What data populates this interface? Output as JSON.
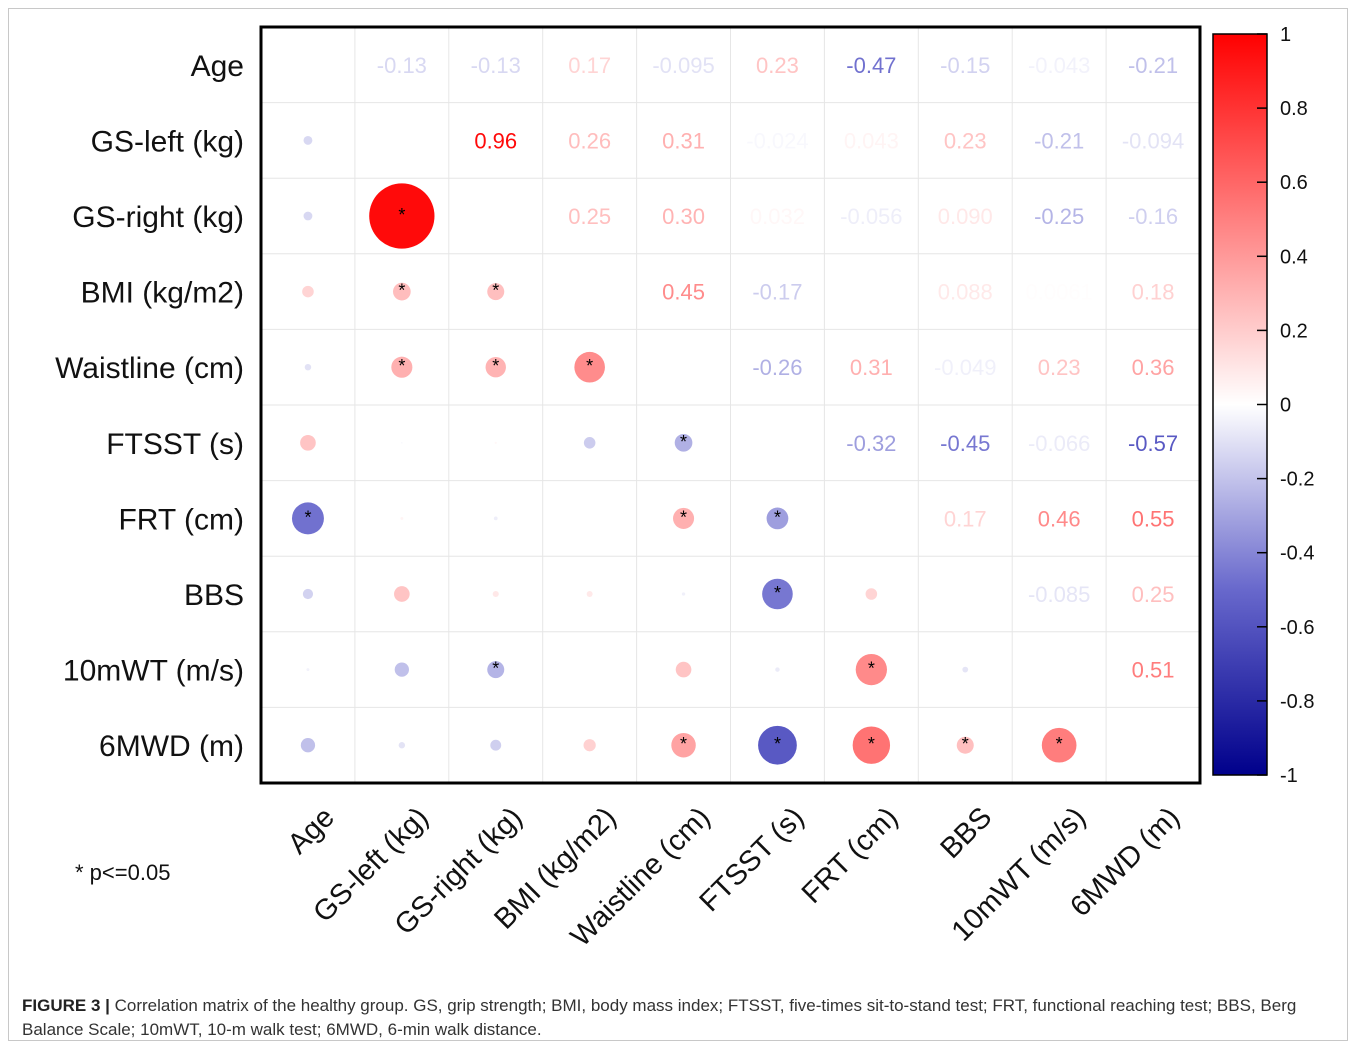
{
  "chart_data": {
    "type": "heatmap",
    "variables": [
      "Age",
      "GS-left (kg)",
      "GS-right (kg)",
      "BMI (kg/m2)",
      "Waistline (cm)",
      "FTSST (s)",
      "FRT (cm)",
      "BBS",
      "10mWT (m/s)",
      "6MWD (m)"
    ],
    "upper_labels": [
      [
        null,
        "-0.13",
        "-0.13",
        "0.17",
        "-0.095",
        "0.23",
        "-0.47",
        "-0.15",
        "-0.043",
        "-0.21"
      ],
      [
        null,
        null,
        "0.96",
        "0.26",
        "0.31",
        "-0.024",
        "0.043",
        "0.23",
        "-0.21",
        "-0.094"
      ],
      [
        null,
        null,
        null,
        "0.25",
        "0.30",
        "0.032",
        "-0.056",
        "0.090",
        "-0.25",
        "-0.16"
      ],
      [
        null,
        null,
        null,
        null,
        "0.45",
        "-0.17",
        "",
        "0.088",
        "0.0061",
        "0.18"
      ],
      [
        null,
        null,
        null,
        null,
        null,
        "-0.26",
        "0.31",
        "-0.049",
        "0.23",
        "0.36"
      ],
      [
        null,
        null,
        null,
        null,
        null,
        null,
        "-0.32",
        "-0.45",
        "-0.066",
        "-0.57"
      ],
      [
        null,
        null,
        null,
        null,
        null,
        null,
        null,
        "0.17",
        "0.46",
        "0.55"
      ],
      [
        null,
        null,
        null,
        null,
        null,
        null,
        null,
        null,
        "-0.085",
        "0.25"
      ],
      [
        null,
        null,
        null,
        null,
        null,
        null,
        null,
        null,
        null,
        "0.51"
      ],
      [
        null,
        null,
        null,
        null,
        null,
        null,
        null,
        null,
        null,
        null
      ]
    ],
    "significant": [
      [
        1,
        2
      ],
      [
        1,
        3
      ],
      [
        2,
        3
      ],
      [
        3,
        4
      ],
      [
        1,
        4
      ],
      [
        2,
        4
      ],
      [
        4,
        5
      ],
      [
        0,
        6
      ],
      [
        4,
        6
      ],
      [
        5,
        6
      ],
      [
        5,
        7
      ],
      [
        2,
        8
      ],
      [
        6,
        8
      ],
      [
        4,
        9
      ],
      [
        5,
        9
      ],
      [
        6,
        9
      ],
      [
        7,
        9
      ],
      [
        8,
        9
      ]
    ],
    "colorbar": {
      "min": -1,
      "max": 1,
      "ticks": [
        "1",
        "0.8",
        "0.6",
        "0.4",
        "0.2",
        "0",
        "-0.2",
        "-0.4",
        "-0.6",
        "-0.8",
        "-1"
      ],
      "colors": {
        "positive": "#ff0000",
        "zero": "#ffffff",
        "negative": "#00008b"
      }
    },
    "significance_marker": "*",
    "significance_note": "* p<=0.05"
  },
  "caption": {
    "label": "FIGURE 3 |",
    "text": "Correlation matrix of the healthy group. GS, grip strength; BMI, body mass index; FTSST, five-times sit-to-stand test; FRT, functional reaching test; BBS, Berg Balance Scale; 10mWT, 10-m walk test; 6MWD, 6-min walk distance."
  }
}
